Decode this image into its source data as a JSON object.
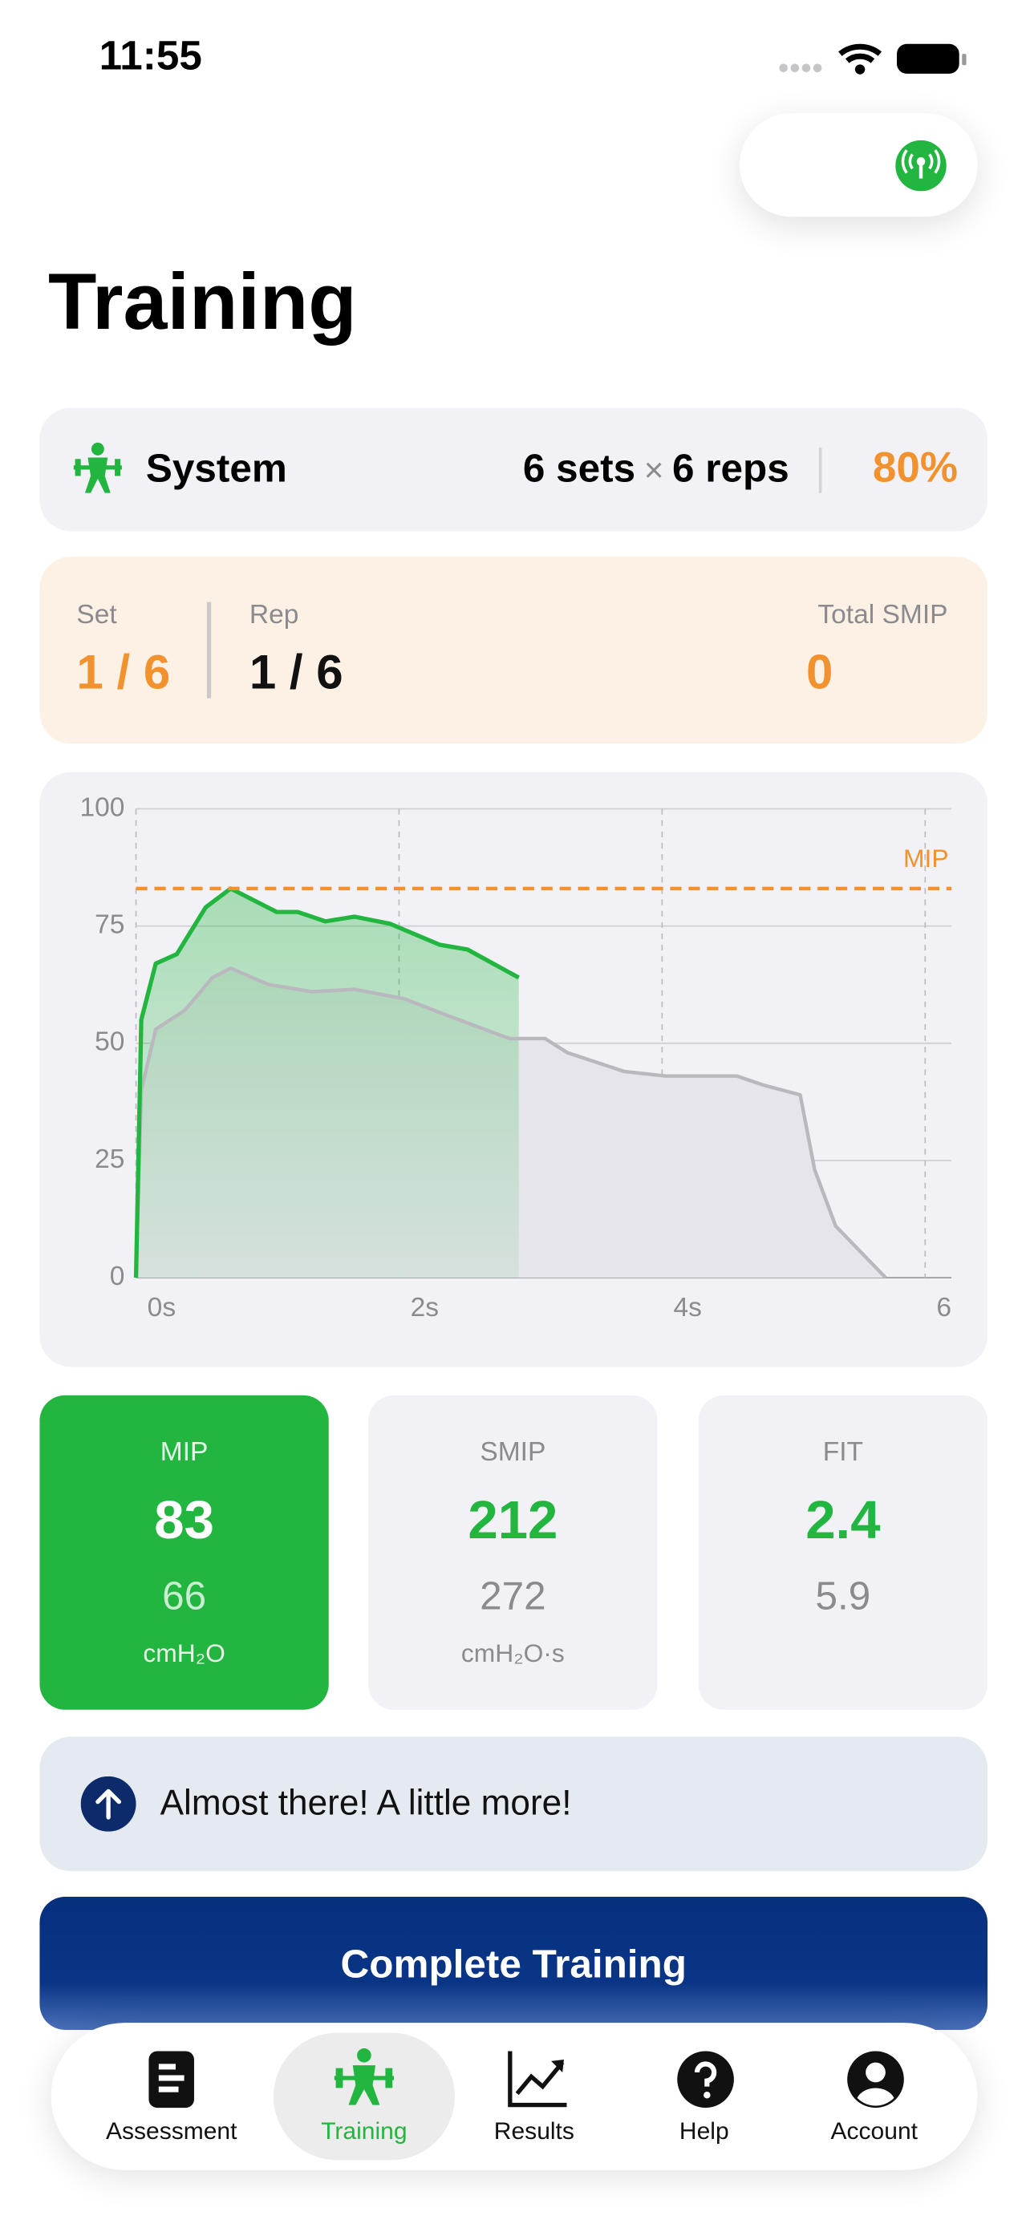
{
  "status_bar": {
    "time": "11:55"
  },
  "header": {
    "title": "Training"
  },
  "program": {
    "name": "System",
    "sets": "6 sets",
    "times": "×",
    "reps": "6 reps",
    "intensity": "80%"
  },
  "progress": {
    "set_label": "Set",
    "set_value": "1 / 6",
    "rep_label": "Rep",
    "rep_value": "1 / 6",
    "total_label": "Total SMIP",
    "total_value": "0"
  },
  "chart_data": {
    "type": "area",
    "xlim": [
      0,
      6.2
    ],
    "ylim": [
      0,
      100
    ],
    "xticks": [
      {
        "value": 0,
        "label": "0s"
      },
      {
        "value": 2,
        "label": "2s"
      },
      {
        "value": 4,
        "label": "4s"
      },
      6
    ],
    "yticks": [
      0,
      25,
      50,
      75,
      100
    ],
    "grid": true,
    "reference_line": {
      "label": "MIP",
      "value": 83,
      "color": "#f2922e"
    },
    "series": [
      {
        "color": "#b9b8bf",
        "fill": "#e6e5eb",
        "x": [
          0,
          0.04,
          0.15,
          0.37,
          0.58,
          0.72,
          1.01,
          1.34,
          1.66,
          2.04,
          2.36,
          2.84,
          3.11,
          3.28,
          3.71,
          4.03,
          4.57,
          4.78,
          5.05,
          5.16,
          5.32,
          5.7
        ],
        "values": [
          0,
          40,
          53,
          57,
          64,
          66,
          62.5,
          61,
          61.5,
          59.5,
          56,
          51,
          51,
          48,
          44,
          43,
          43,
          41,
          39,
          23,
          11,
          0
        ]
      },
      {
        "color": "#22b53f",
        "fill": "#a8dcb3",
        "x": [
          0,
          0.04,
          0.15,
          0.31,
          0.53,
          0.72,
          1.07,
          1.23,
          1.44,
          1.66,
          1.93,
          2.31,
          2.52,
          2.91
        ],
        "values": [
          0,
          55,
          67,
          69,
          79,
          83,
          78,
          78,
          76,
          77,
          75.5,
          71,
          70,
          64
        ]
      }
    ]
  },
  "metrics": [
    {
      "label": "MIP",
      "value": "83",
      "previous": "66",
      "unit": "cmH₂O"
    },
    {
      "label": "SMIP",
      "value": "212",
      "previous": "272",
      "unit": "cmH₂O·s"
    },
    {
      "label": "FIT",
      "value": "2.4",
      "previous": "5.9"
    }
  ],
  "message": "Almost there! A little more!",
  "button": "Complete Training",
  "tabs": [
    "Assessment",
    "Training",
    "Results",
    "Help",
    "Account"
  ]
}
